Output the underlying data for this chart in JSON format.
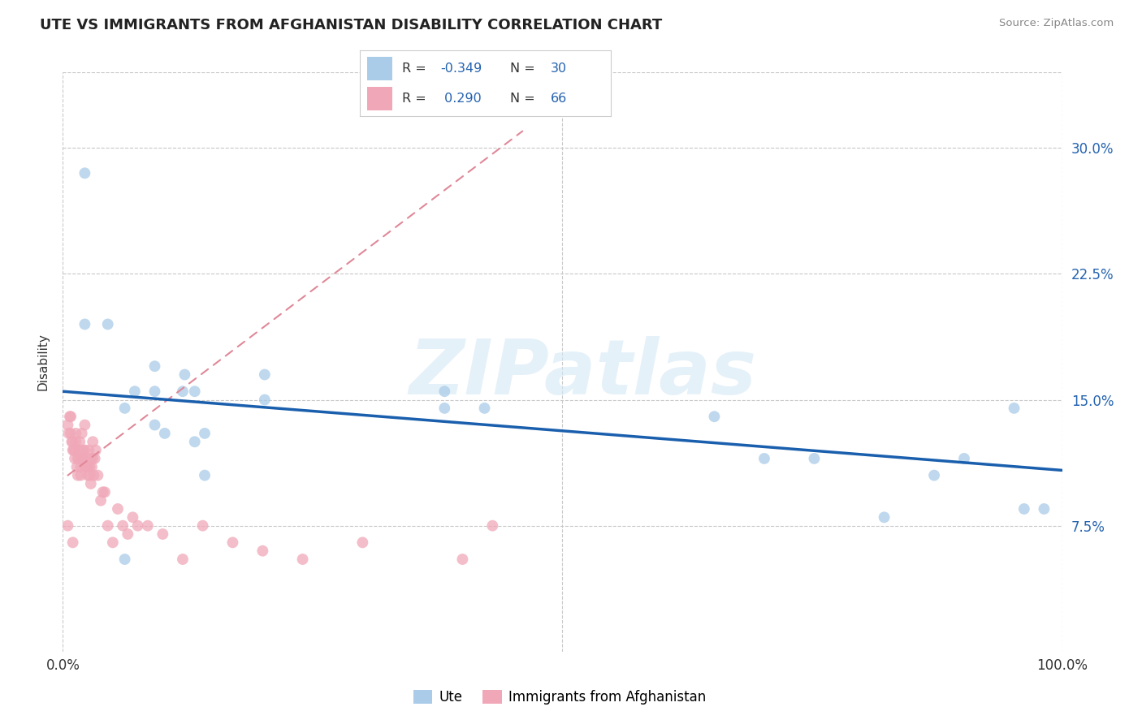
{
  "title": "UTE VS IMMIGRANTS FROM AFGHANISTAN DISABILITY CORRELATION CHART",
  "source": "Source: ZipAtlas.com",
  "ylabel": "Disability",
  "xlim": [
    0,
    1.0
  ],
  "ylim": [
    0.0,
    0.345
  ],
  "yticks": [
    0.075,
    0.15,
    0.225,
    0.3
  ],
  "ytick_labels": [
    "7.5%",
    "15.0%",
    "22.5%",
    "30.0%"
  ],
  "xticks": [
    0.0,
    1.0
  ],
  "xtick_labels": [
    "0.0%",
    "100.0%"
  ],
  "legend_r_ute": "-0.349",
  "legend_n_ute": "30",
  "legend_r_afghan": "0.290",
  "legend_n_afghan": "66",
  "color_ute": "#aacce8",
  "color_ute_line": "#1a5fad",
  "color_afghan": "#f0a8b8",
  "color_afghan_line": "#e08898",
  "watermark_text": "ZIPatlas",
  "bg_color": "#ffffff",
  "grid_color": "#c8c8c8",
  "text_color": "#333333",
  "blue_label_color": "#2563b0",
  "ute_x": [
    0.022,
    0.045,
    0.022,
    0.062,
    0.072,
    0.092,
    0.092,
    0.092,
    0.102,
    0.122,
    0.132,
    0.132,
    0.142,
    0.142,
    0.202,
    0.202,
    0.382,
    0.382,
    0.422,
    0.652,
    0.702,
    0.752,
    0.822,
    0.872,
    0.902,
    0.952,
    0.962,
    0.982,
    0.062,
    0.12
  ],
  "ute_y": [
    0.285,
    0.195,
    0.195,
    0.145,
    0.155,
    0.17,
    0.155,
    0.135,
    0.13,
    0.165,
    0.155,
    0.125,
    0.13,
    0.105,
    0.165,
    0.15,
    0.155,
    0.145,
    0.145,
    0.14,
    0.115,
    0.115,
    0.08,
    0.105,
    0.115,
    0.145,
    0.085,
    0.085,
    0.055,
    0.155
  ],
  "afghan_x": [
    0.005,
    0.006,
    0.007,
    0.008,
    0.008,
    0.009,
    0.01,
    0.01,
    0.011,
    0.012,
    0.012,
    0.013,
    0.013,
    0.014,
    0.015,
    0.015,
    0.016,
    0.016,
    0.017,
    0.018,
    0.018,
    0.019,
    0.019,
    0.02,
    0.02,
    0.021,
    0.022,
    0.022,
    0.023,
    0.024,
    0.025,
    0.025,
    0.026,
    0.027,
    0.027,
    0.028,
    0.028,
    0.029,
    0.03,
    0.03,
    0.031,
    0.032,
    0.033,
    0.035,
    0.038,
    0.04,
    0.042,
    0.045,
    0.05,
    0.055,
    0.06,
    0.065,
    0.07,
    0.075,
    0.085,
    0.1,
    0.12,
    0.14,
    0.17,
    0.2,
    0.24,
    0.3,
    0.4,
    0.43,
    0.005,
    0.01
  ],
  "afghan_y": [
    0.135,
    0.13,
    0.14,
    0.13,
    0.14,
    0.125,
    0.12,
    0.125,
    0.12,
    0.115,
    0.12,
    0.125,
    0.13,
    0.11,
    0.105,
    0.115,
    0.115,
    0.12,
    0.125,
    0.11,
    0.105,
    0.115,
    0.13,
    0.115,
    0.12,
    0.115,
    0.135,
    0.12,
    0.11,
    0.11,
    0.105,
    0.11,
    0.12,
    0.11,
    0.105,
    0.1,
    0.115,
    0.11,
    0.115,
    0.125,
    0.105,
    0.115,
    0.12,
    0.105,
    0.09,
    0.095,
    0.095,
    0.075,
    0.065,
    0.085,
    0.075,
    0.07,
    0.08,
    0.075,
    0.075,
    0.07,
    0.055,
    0.075,
    0.065,
    0.06,
    0.055,
    0.065,
    0.055,
    0.075,
    0.075,
    0.065
  ],
  "ute_line_x": [
    0.0,
    1.0
  ],
  "ute_line_y": [
    0.155,
    0.108
  ],
  "afghan_line_x": [
    0.005,
    0.46
  ],
  "afghan_line_y": [
    0.105,
    0.31
  ]
}
